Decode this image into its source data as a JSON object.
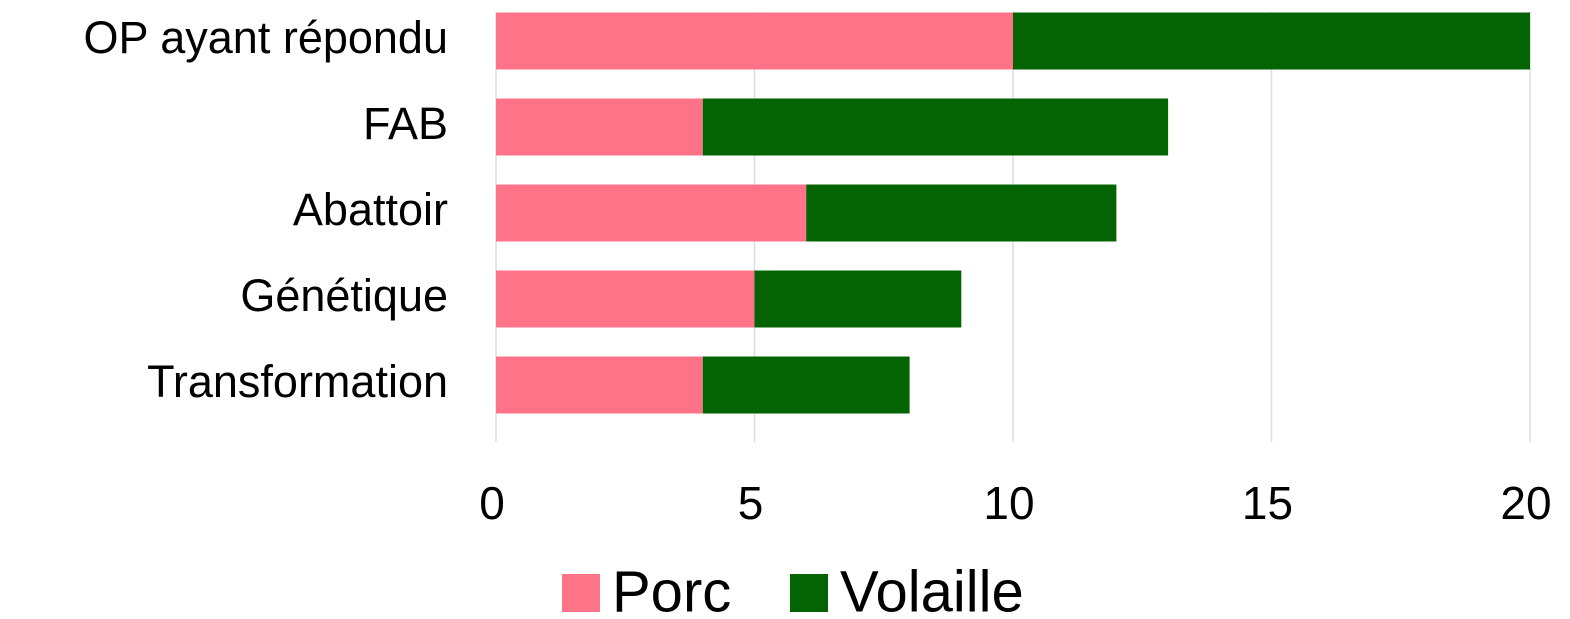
{
  "chart_data": {
    "type": "stacked_barh",
    "categories": [
      "OP ayant répondu",
      "FAB",
      "Abattoir",
      "Génétique",
      "Transformation"
    ],
    "series": [
      {
        "name": "Porc",
        "color": "#ff7388",
        "values": [
          10,
          4,
          6,
          5,
          4
        ]
      },
      {
        "name": "Volaille",
        "color": "#046404",
        "values": [
          10,
          9,
          6,
          4,
          4
        ]
      }
    ],
    "xlim": [
      0,
      20
    ],
    "xticks": [
      0,
      5,
      10,
      15,
      20
    ],
    "grid": true,
    "legend": "bottom"
  }
}
